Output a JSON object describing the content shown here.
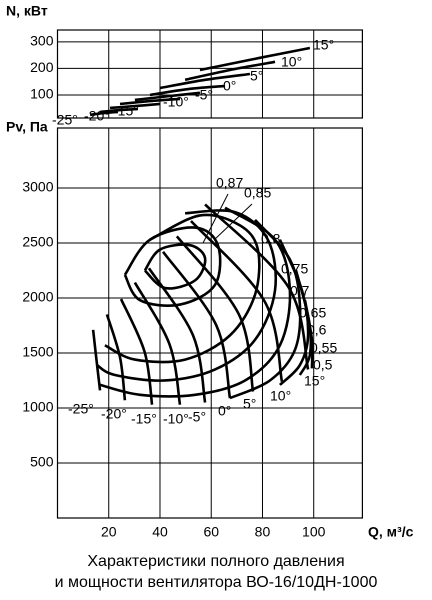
{
  "title_lines": [
    "Характеристики полного давления",
    "и мощности вентилятора ВО-16/10ДН-1000"
  ],
  "chart_data": [
    {
      "type": "line",
      "ylabel": "N, кВт",
      "xlim": [
        0,
        119
      ],
      "ylim": [
        13,
        345
      ],
      "yticks": [
        100,
        200,
        300
      ],
      "xticks": [
        20,
        40,
        60,
        80,
        100
      ],
      "xtick_labels": false,
      "grid": true,
      "color": "#000000",
      "series": [
        {
          "name": "-25°",
          "x": [
            12.7,
            18.5,
            23.6
          ],
          "values": [
            25,
            32,
            36
          ]
        },
        {
          "name": "-20°",
          "x": [
            16.6,
            24.4,
            31.4
          ],
          "values": [
            36,
            43,
            47
          ]
        },
        {
          "name": "-15°",
          "x": [
            20.5,
            30.2,
            40.0
          ],
          "values": [
            51,
            58,
            66
          ]
        },
        {
          "name": "-10°",
          "x": [
            24.4,
            36.1,
            47.8
          ],
          "values": [
            66,
            77,
            85
          ]
        },
        {
          "name": "-5°",
          "x": [
            30.2,
            43.9,
            55.6
          ],
          "values": [
            81,
            96,
            108
          ]
        },
        {
          "name": "0°",
          "x": [
            36.1,
            51.7,
            65.4
          ],
          "values": [
            100,
            123,
            134
          ]
        },
        {
          "name": "5°",
          "x": [
            40.0,
            57.6,
            75.1
          ],
          "values": [
            126,
            157,
            179
          ]
        },
        {
          "name": "10°",
          "x": [
            49.8,
            67.3,
            84.9
          ],
          "values": [
            157,
            194,
            225
          ]
        },
        {
          "name": "15°",
          "x": [
            55.6,
            79.0,
            98.5
          ],
          "values": [
            194,
            240,
            277
          ]
        }
      ]
    },
    {
      "type": "line",
      "ylabel": "Pv, Па",
      "xlabel": "Q, м³/с",
      "xlim": [
        0,
        119
      ],
      "ylim": [
        0,
        3545
      ],
      "yticks": [
        500,
        1000,
        1500,
        2000,
        2500,
        3000
      ],
      "xticks": [
        20,
        40,
        60,
        80,
        100
      ],
      "xtick_labels": true,
      "grid": true,
      "color": "#000000",
      "series": [
        {
          "name": "-25°",
          "x": [
            13.9,
            15.2,
            16.6
          ],
          "values": [
            1710,
            1440,
            1160
          ]
        },
        {
          "name": "-20°",
          "x": [
            19.3,
            24.4,
            26.3
          ],
          "values": [
            1850,
            1460,
            1070
          ]
        },
        {
          "name": "-15°",
          "x": [
            24.8,
            34.0,
            36.9
          ],
          "values": [
            1990,
            1510,
            1030
          ]
        },
        {
          "name": "-10°",
          "x": [
            30.2,
            43.7,
            47.8
          ],
          "values": [
            2140,
            1580,
            1030
          ]
        },
        {
          "name": "-5°",
          "x": [
            35.7,
            52.9,
            57.6
          ],
          "values": [
            2270,
            1660,
            1050
          ]
        },
        {
          "name": "0°",
          "x": [
            41.2,
            62.0,
            67.3
          ],
          "values": [
            2420,
            1750,
            1090
          ]
        },
        {
          "name": "5°",
          "x": [
            46.6,
            70.8,
            76.3
          ],
          "values": [
            2560,
            1850,
            1150
          ]
        },
        {
          "name": "10°",
          "x": [
            52.1,
            80.8,
            87.6
          ],
          "values": [
            2700,
            1970,
            1240
          ]
        },
        {
          "name": "15°",
          "x": [
            57.6,
            90.1,
            97.8
          ],
          "values": [
            2850,
            2100,
            1350
          ]
        }
      ],
      "contours": [
        {
          "name": "0,87",
          "x": [
            34.1,
            40.0,
            51.7,
            57.6,
            53.7,
            42.0,
            34.1
          ],
          "values": [
            2250,
            2440,
            2480,
            2360,
            2160,
            2090,
            2250
          ]
        },
        {
          "name": "0,85",
          "x": [
            26.3,
            36.1,
            53.7,
            62.6,
            61.5,
            47.8,
            32.2,
            26.3
          ],
          "values": [
            2210,
            2530,
            2640,
            2480,
            2120,
            1940,
            1980,
            2210
          ]
        },
        {
          "name": "0,8",
          "x": [
            36.1,
            55.6,
            71.2,
            78.2,
            77.1,
            67.3,
            49.8,
            30.2,
            18.5
          ],
          "values": [
            2530,
            2750,
            2660,
            2440,
            2030,
            1660,
            1440,
            1440,
            1570
          ]
        },
        {
          "name": "0,75",
          "x": [
            49.8,
            69.3,
            82.1,
            84.9,
            77.1,
            61.5,
            42.0,
            22.4,
            15.4
          ],
          "values": [
            2770,
            2780,
            2530,
            2070,
            1620,
            1350,
            1250,
            1300,
            1390
          ]
        },
        {
          "name": "0,7",
          "x": [
            65.4,
            84.9,
            90.7,
            86.8,
            73.2,
            53.7,
            32.2,
            16.6
          ],
          "values": [
            2820,
            2530,
            2070,
            1570,
            1250,
            1120,
            1120,
            1210
          ]
        },
        {
          "name": "0,65",
          "x": [
            77.1,
            90.7,
            94.6,
            92.7,
            82.9,
            67.3
          ],
          "values": [
            2710,
            2350,
            1940,
            1530,
            1250,
            1090
          ]
        },
        {
          "name": "0,6",
          "x": [
            86.8,
            95.4,
            97.8,
            94.6,
            86.8
          ],
          "values": [
            2530,
            2070,
            1660,
            1390,
            1210
          ]
        },
        {
          "name": "0,55",
          "x": [
            93.1,
            98.1,
            98.5,
            94.6
          ],
          "values": [
            2250,
            1800,
            1480,
            1300
          ]
        },
        {
          "name": "0,5",
          "x": [
            96.6,
            99.3,
            99.3
          ],
          "values": [
            1980,
            1620,
            1360
          ]
        }
      ]
    }
  ]
}
